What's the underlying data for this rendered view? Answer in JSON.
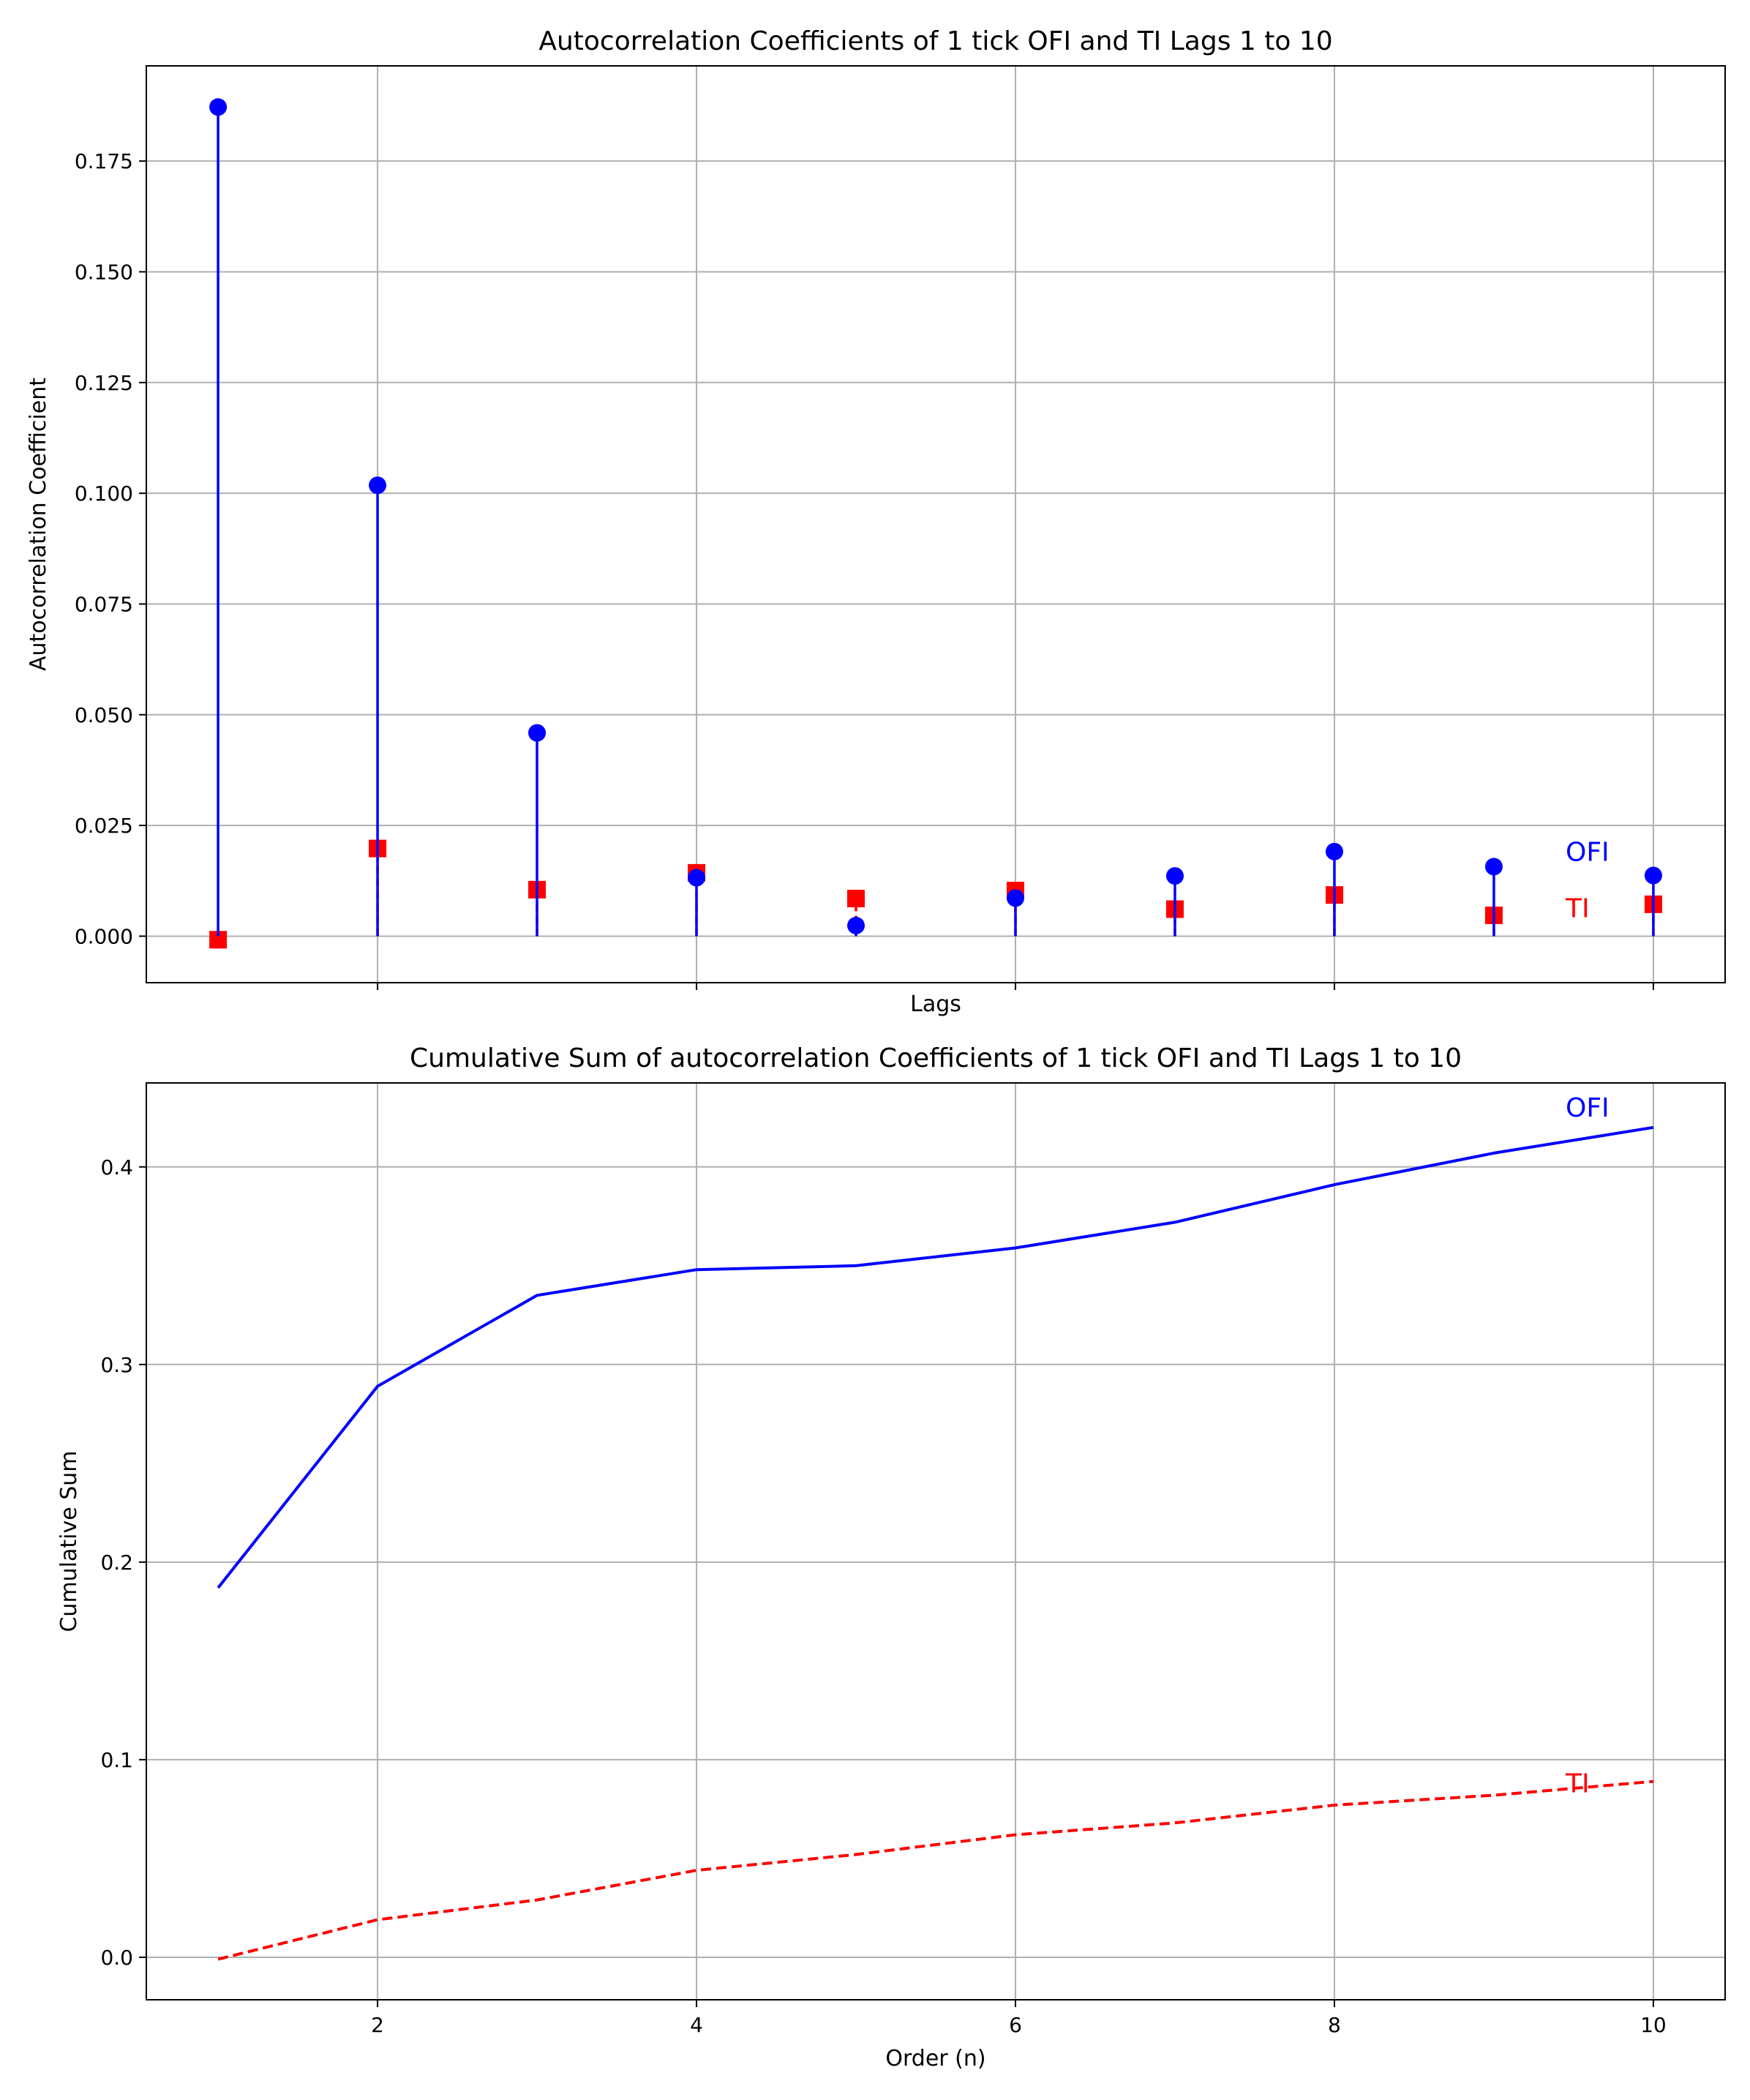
{
  "chart_data": [
    {
      "type": "stem",
      "title": "Autocorrelation Coefficients of 1 tick OFI and TI Lags 1 to 10",
      "xlabel": "Lags",
      "ylabel": "Autocorrelation Coefficient",
      "x": [
        1,
        2,
        3,
        4,
        5,
        6,
        7,
        8,
        9,
        10
      ],
      "xlim": [
        0.55,
        10.45
      ],
      "ylim": [
        -0.0105,
        0.1965
      ],
      "yticks": [
        "0.000",
        "0.025",
        "0.050",
        "0.075",
        "0.100",
        "0.125",
        "0.150",
        "0.175"
      ],
      "xticks": [
        2,
        4,
        6,
        8,
        10
      ],
      "show_xtick_labels": false,
      "grid": true,
      "series": [
        {
          "name": "OFI",
          "color": "#0000ff",
          "marker": "circle",
          "line": "solid",
          "values": [
            0.1872,
            0.1018,
            0.0459,
            0.0132,
            0.0024,
            0.0086,
            0.0136,
            0.0191,
            0.0157,
            0.0137
          ]
        },
        {
          "name": "TI",
          "color": "#ff0000",
          "marker": "square",
          "line": "dashed",
          "values": [
            -0.0008,
            0.0198,
            0.0105,
            0.0143,
            0.0085,
            0.0103,
            0.0061,
            0.0093,
            0.0047,
            0.0072
          ]
        }
      ],
      "annotations": [
        {
          "text": "OFI",
          "color": "#0000ff",
          "x": 9.45,
          "y": 0.017
        },
        {
          "text": "TI",
          "color": "#ff0000",
          "x": 9.45,
          "y": 0.0043
        }
      ]
    },
    {
      "type": "line",
      "title": "Cumulative Sum of autocorrelation Coefficients of 1 tick OFI and TI Lags 1 to 10",
      "xlabel": "Order (n)",
      "ylabel": "Cumulative Sum",
      "x": [
        1,
        2,
        3,
        4,
        5,
        6,
        7,
        8,
        9,
        10
      ],
      "xlim": [
        0.55,
        10.45
      ],
      "ylim": [
        -0.0215,
        0.4425
      ],
      "yticks": [
        "0.0",
        "0.1",
        "0.2",
        "0.3",
        "0.4"
      ],
      "xticks": [
        2,
        4,
        6,
        8,
        10
      ],
      "grid": true,
      "series": [
        {
          "name": "OFI",
          "color": "#0000ff",
          "line": "solid",
          "values": [
            0.187,
            0.289,
            0.335,
            0.348,
            0.35,
            0.359,
            0.372,
            0.391,
            0.407,
            0.42
          ]
        },
        {
          "name": "TI",
          "color": "#ff0000",
          "line": "dashed",
          "values": [
            -0.001,
            0.019,
            0.029,
            0.044,
            0.052,
            0.062,
            0.068,
            0.077,
            0.082,
            0.089
          ]
        }
      ],
      "annotations": [
        {
          "text": "OFI",
          "color": "#0000ff",
          "x": 9.45,
          "y": 0.4255
        },
        {
          "text": "TI",
          "color": "#ff0000",
          "x": 9.45,
          "y": 0.0835
        }
      ]
    }
  ]
}
